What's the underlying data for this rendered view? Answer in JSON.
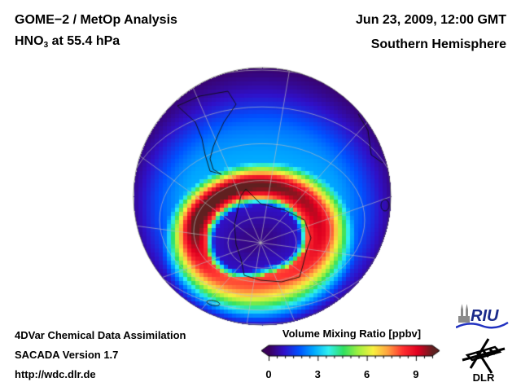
{
  "header": {
    "title": "GOME−2 / MetOp Analysis",
    "species": "HNO",
    "species_sub": "3",
    "level": " at 55.4 hPa",
    "datetime": "Jun 23, 2009, 12:00 GMT",
    "region": "Southern Hemisphere"
  },
  "footer": {
    "line1": "4DVar Chemical Data Assimilation",
    "line2": "SACADA Version 1.7",
    "line3": "http://wdc.dlr.de"
  },
  "map": {
    "projection": "orthographic",
    "hemisphere": "south",
    "field": "HNO3 volume mixing ratio",
    "features": {
      "polar_vortex_depletion": "low HNO3 (~0-1 ppbv) over Antarctica centered near pole",
      "collar_maximum": "high HNO3 ring (~8-10 ppbv) surrounding vortex, strongest toward South America and Atlantic sector",
      "background_midlatitudes": "~1-3 ppbv",
      "tropics_edge": "~0-1 ppbv"
    }
  },
  "colorbar": {
    "title": "Volume Mixing Ratio [ppbv]",
    "min": 0,
    "max": 10,
    "ticks": [
      "0",
      "3",
      "6",
      "9"
    ],
    "tick_values": [
      0,
      3,
      6,
      9
    ],
    "extend": "both",
    "colors": [
      "#3a005a",
      "#3010c8",
      "#0050ff",
      "#00a8ff",
      "#30f0f0",
      "#30e060",
      "#a0f040",
      "#f8f040",
      "#ffa040",
      "#ff3030",
      "#e00020",
      "#602020"
    ]
  },
  "logos": {
    "riu": "RIU",
    "dlr": "DLR"
  }
}
